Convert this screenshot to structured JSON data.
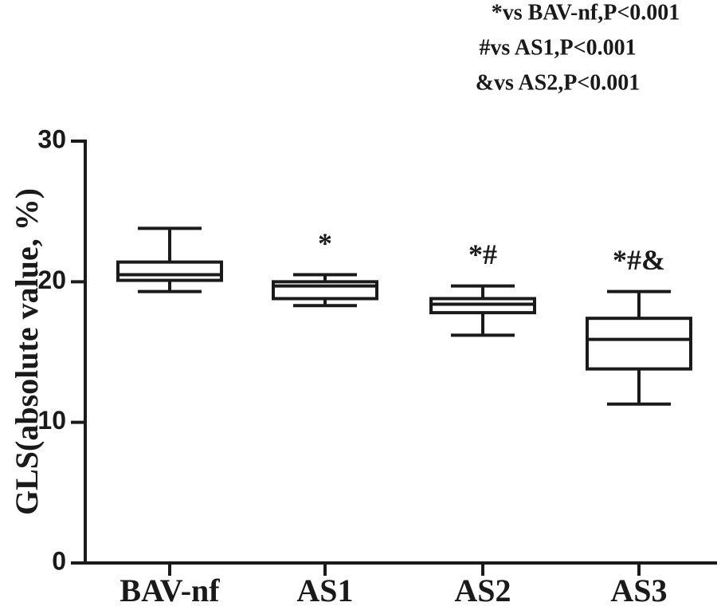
{
  "chart_data": {
    "type": "box",
    "notes": [
      "*vs BAV-nf,P<0.001",
      "#vs AS1,P<0.001",
      "&vs AS2,P<0.001"
    ],
    "y_label": "GLS(absolute value, %)",
    "categories": [
      "BAV-nf",
      "AS1",
      "AS2",
      "AS3"
    ],
    "boxes": [
      {
        "whisker_low": 19.3,
        "q1": 20.1,
        "median": 20.5,
        "q3": 21.4,
        "whisker_high": 23.8
      },
      {
        "whisker_low": 18.3,
        "q1": 18.8,
        "median": 19.7,
        "q3": 20.0,
        "whisker_high": 20.5
      },
      {
        "whisker_low": 16.2,
        "q1": 17.8,
        "median": 18.4,
        "q3": 18.8,
        "whisker_high": 19.7
      },
      {
        "whisker_low": 11.3,
        "q1": 13.8,
        "median": 15.9,
        "q3": 17.4,
        "whisker_high": 19.3
      }
    ],
    "significance": [
      null,
      "*",
      "*#",
      "*#&"
    ],
    "color": "#1a1a1a",
    "ylim": [
      0,
      30
    ],
    "yticks": [
      0,
      10,
      20,
      30
    ]
  }
}
